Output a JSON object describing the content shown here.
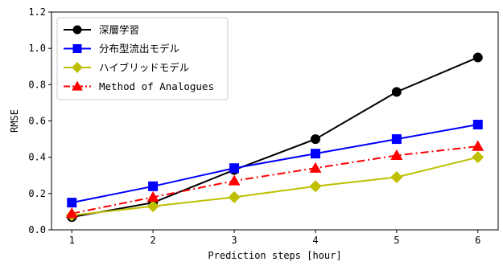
{
  "chart_data": {
    "type": "line",
    "x": [
      1,
      2,
      3,
      4,
      5,
      6
    ],
    "xlabel": "Prediction steps [hour]",
    "ylabel": "RMSE",
    "xlim": [
      0.75,
      6.25
    ],
    "ylim": [
      0.0,
      1.2
    ],
    "xticks": [
      "1",
      "2",
      "3",
      "4",
      "5",
      "6"
    ],
    "yticks": [
      "0.0",
      "0.2",
      "0.4",
      "0.6",
      "0.8",
      "1.0",
      "1.2"
    ],
    "grid": false,
    "legend_position": "upper-left",
    "series": [
      {
        "name": "深層学習",
        "color": "#000000",
        "marker": "circle",
        "linestyle": "solid",
        "values": [
          0.07,
          0.15,
          0.33,
          0.5,
          0.76,
          0.95
        ]
      },
      {
        "name": "分布型流出モデル",
        "color": "#0000ff",
        "marker": "square",
        "linestyle": "solid",
        "values": [
          0.15,
          0.24,
          0.34,
          0.42,
          0.5,
          0.58
        ]
      },
      {
        "name": "ハイブリッドモデル",
        "color": "#bfbf00",
        "marker": "diamond",
        "linestyle": "solid",
        "values": [
          0.08,
          0.13,
          0.18,
          0.24,
          0.29,
          0.4
        ]
      },
      {
        "name": "Method of Analogues",
        "color": "#ff0000",
        "marker": "triangle",
        "linestyle": "dashdot",
        "values": [
          0.09,
          0.18,
          0.27,
          0.34,
          0.41,
          0.46
        ]
      }
    ]
  }
}
